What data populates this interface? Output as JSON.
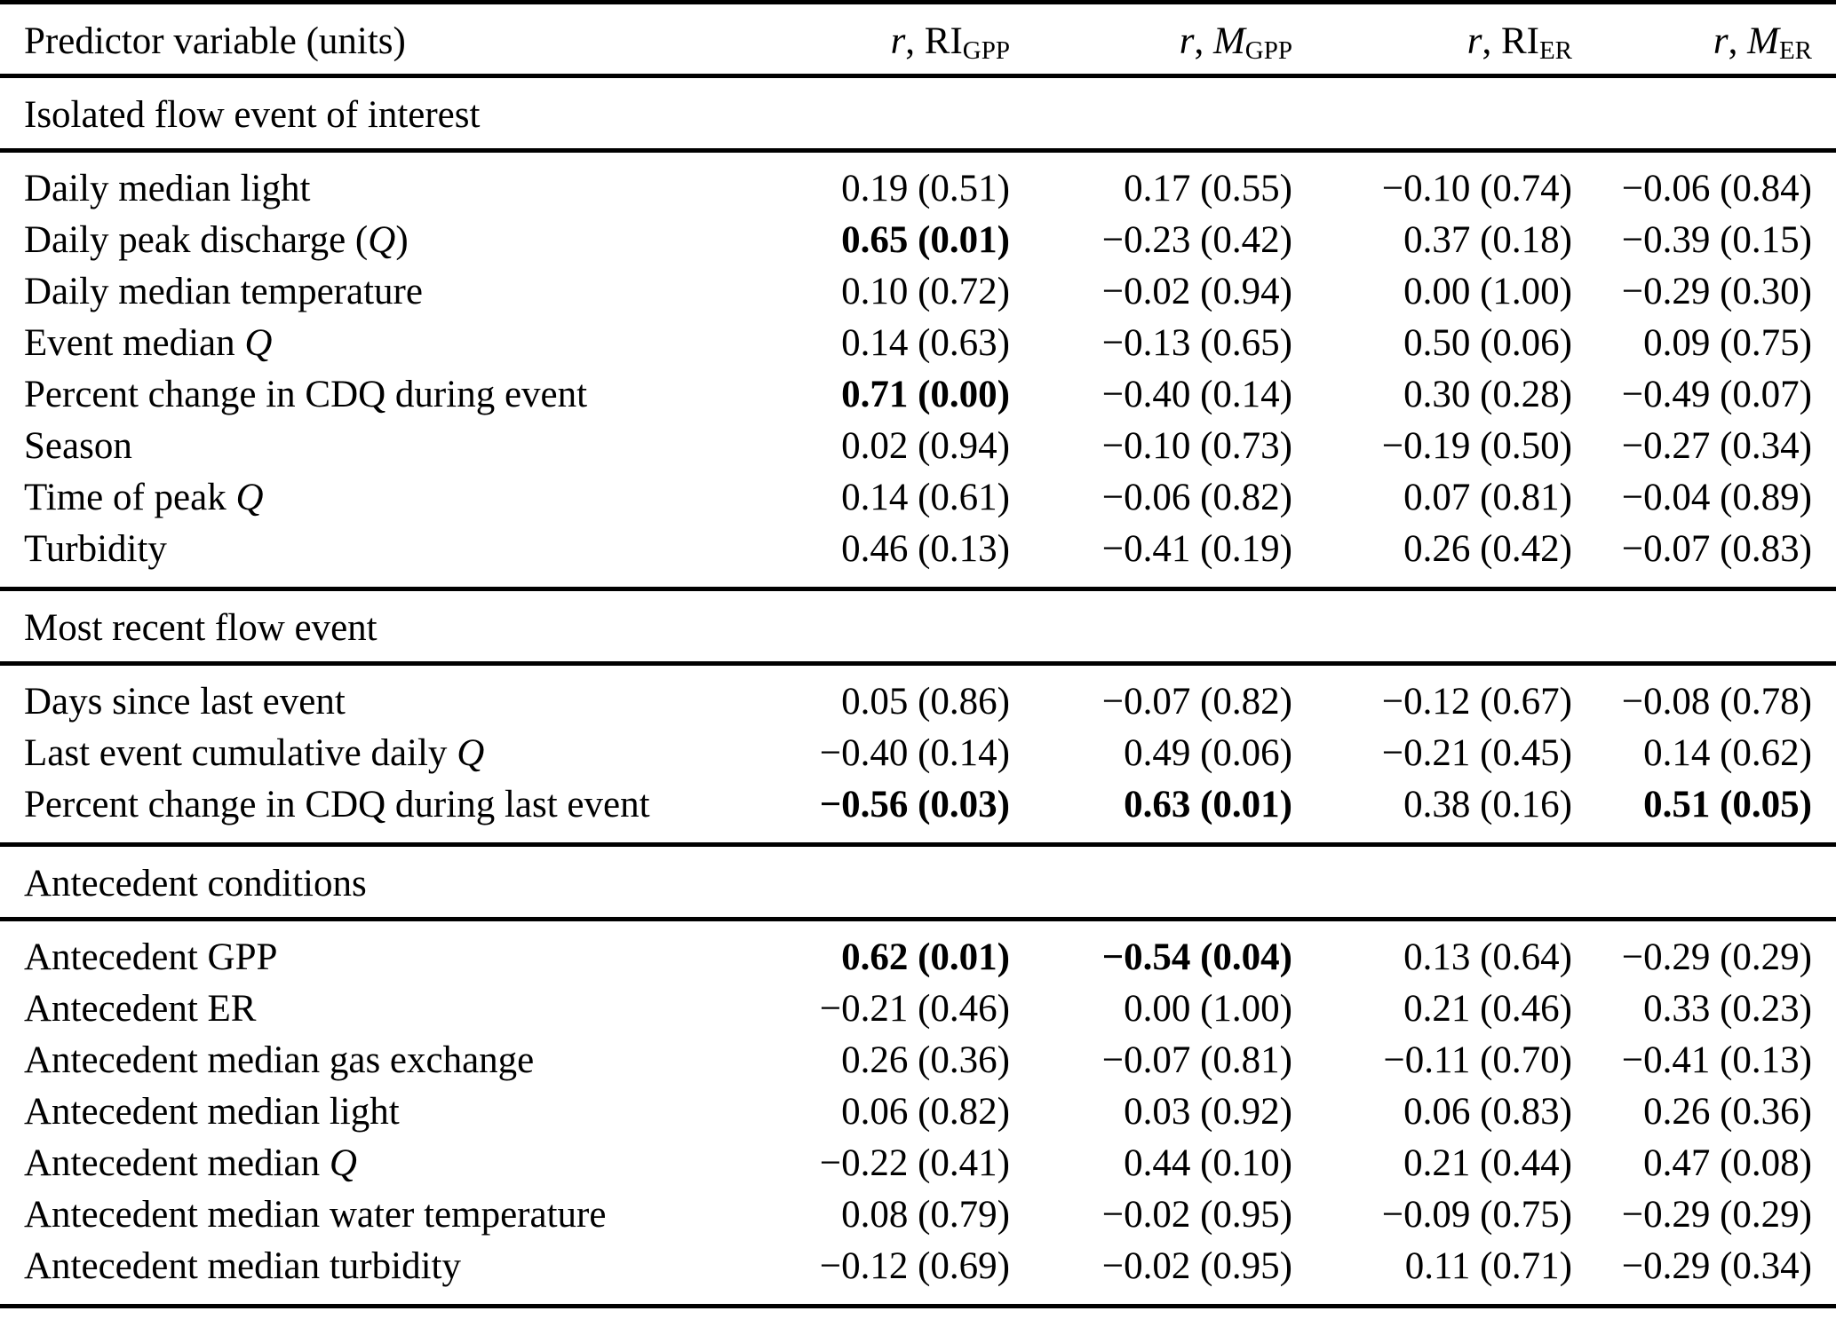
{
  "table": {
    "header": {
      "predictor": "Predictor variable (units)",
      "columns": [
        {
          "r": "r",
          "sep": ", ",
          "name": "RI",
          "sub": "GPP",
          "name_style": "roman"
        },
        {
          "r": "r",
          "sep": ", ",
          "name": "M",
          "sub": "GPP",
          "name_style": "italic"
        },
        {
          "r": "r",
          "sep": ", ",
          "name": "RI",
          "sub": "ER",
          "name_style": "roman"
        },
        {
          "r": "r",
          "sep": ", ",
          "name": "M",
          "sub": "ER",
          "name_style": "italic"
        }
      ]
    },
    "sections": [
      {
        "title": "Isolated flow event of interest",
        "rows": [
          {
            "label_pre": "Daily median light",
            "label_it": "",
            "label_post": "",
            "cells": [
              "0.19 (0.51)",
              "0.17 (0.55)",
              "−0.10 (0.74)",
              "−0.06 (0.84)"
            ],
            "bold": [
              false,
              false,
              false,
              false
            ]
          },
          {
            "label_pre": "Daily peak discharge (",
            "label_it": "Q",
            "label_post": ")",
            "cells": [
              "0.65 (0.01)",
              "−0.23 (0.42)",
              "0.37 (0.18)",
              "−0.39 (0.15)"
            ],
            "bold": [
              true,
              false,
              false,
              false
            ]
          },
          {
            "label_pre": "Daily median temperature",
            "label_it": "",
            "label_post": "",
            "cells": [
              "0.10 (0.72)",
              "−0.02 (0.94)",
              "0.00 (1.00)",
              "−0.29 (0.30)"
            ],
            "bold": [
              false,
              false,
              false,
              false
            ]
          },
          {
            "label_pre": "Event median ",
            "label_it": "Q",
            "label_post": "",
            "cells": [
              "0.14 (0.63)",
              "−0.13 (0.65)",
              "0.50 (0.06)",
              "0.09 (0.75)"
            ],
            "bold": [
              false,
              false,
              false,
              false
            ]
          },
          {
            "label_pre": "Percent change in CDQ during event",
            "label_it": "",
            "label_post": "",
            "cells": [
              "0.71 (0.00)",
              "−0.40 (0.14)",
              "0.30 (0.28)",
              "−0.49 (0.07)"
            ],
            "bold": [
              true,
              false,
              false,
              false
            ]
          },
          {
            "label_pre": "Season",
            "label_it": "",
            "label_post": "",
            "cells": [
              "0.02 (0.94)",
              "−0.10 (0.73)",
              "−0.19 (0.50)",
              "−0.27 (0.34)"
            ],
            "bold": [
              false,
              false,
              false,
              false
            ]
          },
          {
            "label_pre": "Time of peak ",
            "label_it": "Q",
            "label_post": "",
            "cells": [
              "0.14 (0.61)",
              "−0.06 (0.82)",
              "0.07 (0.81)",
              "−0.04 (0.89)"
            ],
            "bold": [
              false,
              false,
              false,
              false
            ]
          },
          {
            "label_pre": "Turbidity",
            "label_it": "",
            "label_post": "",
            "cells": [
              "0.46 (0.13)",
              "−0.41 (0.19)",
              "0.26 (0.42)",
              "−0.07 (0.83)"
            ],
            "bold": [
              false,
              false,
              false,
              false
            ]
          }
        ]
      },
      {
        "title": "Most recent flow event",
        "rows": [
          {
            "label_pre": "Days since last event",
            "label_it": "",
            "label_post": "",
            "cells": [
              "0.05 (0.86)",
              "−0.07 (0.82)",
              "−0.12 (0.67)",
              "−0.08 (0.78)"
            ],
            "bold": [
              false,
              false,
              false,
              false
            ]
          },
          {
            "label_pre": "Last event cumulative daily ",
            "label_it": "Q",
            "label_post": "",
            "cells": [
              "−0.40 (0.14)",
              "0.49 (0.06)",
              "−0.21 (0.45)",
              "0.14 (0.62)"
            ],
            "bold": [
              false,
              false,
              false,
              false
            ]
          },
          {
            "label_pre": "Percent change in CDQ during last event",
            "label_it": "",
            "label_post": "",
            "cells": [
              "−0.56 (0.03)",
              "0.63 (0.01)",
              "0.38 (0.16)",
              "0.51 (0.05)"
            ],
            "bold": [
              true,
              true,
              false,
              true
            ]
          }
        ]
      },
      {
        "title": "Antecedent conditions",
        "rows": [
          {
            "label_pre": "Antecedent GPP",
            "label_it": "",
            "label_post": "",
            "cells": [
              "0.62 (0.01)",
              "−0.54 (0.04)",
              "0.13 (0.64)",
              "−0.29 (0.29)"
            ],
            "bold": [
              true,
              true,
              false,
              false
            ]
          },
          {
            "label_pre": "Antecedent ER",
            "label_it": "",
            "label_post": "",
            "cells": [
              "−0.21 (0.46)",
              "0.00 (1.00)",
              "0.21 (0.46)",
              "0.33 (0.23)"
            ],
            "bold": [
              false,
              false,
              false,
              false
            ]
          },
          {
            "label_pre": "Antecedent median gas exchange",
            "label_it": "",
            "label_post": "",
            "cells": [
              "0.26 (0.36)",
              "−0.07 (0.81)",
              "−0.11 (0.70)",
              "−0.41 (0.13)"
            ],
            "bold": [
              false,
              false,
              false,
              false
            ]
          },
          {
            "label_pre": "Antecedent median light",
            "label_it": "",
            "label_post": "",
            "cells": [
              "0.06 (0.82)",
              "0.03 (0.92)",
              "0.06 (0.83)",
              "0.26 (0.36)"
            ],
            "bold": [
              false,
              false,
              false,
              false
            ]
          },
          {
            "label_pre": "Antecedent median ",
            "label_it": "Q",
            "label_post": "",
            "cells": [
              "−0.22 (0.41)",
              "0.44 (0.10)",
              "0.21 (0.44)",
              "0.47 (0.08)"
            ],
            "bold": [
              false,
              false,
              false,
              false
            ]
          },
          {
            "label_pre": "Antecedent median water temperature",
            "label_it": "",
            "label_post": "",
            "cells": [
              "0.08 (0.79)",
              "−0.02 (0.95)",
              "−0.09 (0.75)",
              "−0.29 (0.29)"
            ],
            "bold": [
              false,
              false,
              false,
              false
            ]
          },
          {
            "label_pre": "Antecedent median turbidity",
            "label_it": "",
            "label_post": "",
            "cells": [
              "−0.12 (0.69)",
              "−0.02 (0.95)",
              "0.11 (0.71)",
              "−0.29 (0.34)"
            ],
            "bold": [
              false,
              false,
              false,
              false
            ]
          }
        ]
      }
    ]
  }
}
